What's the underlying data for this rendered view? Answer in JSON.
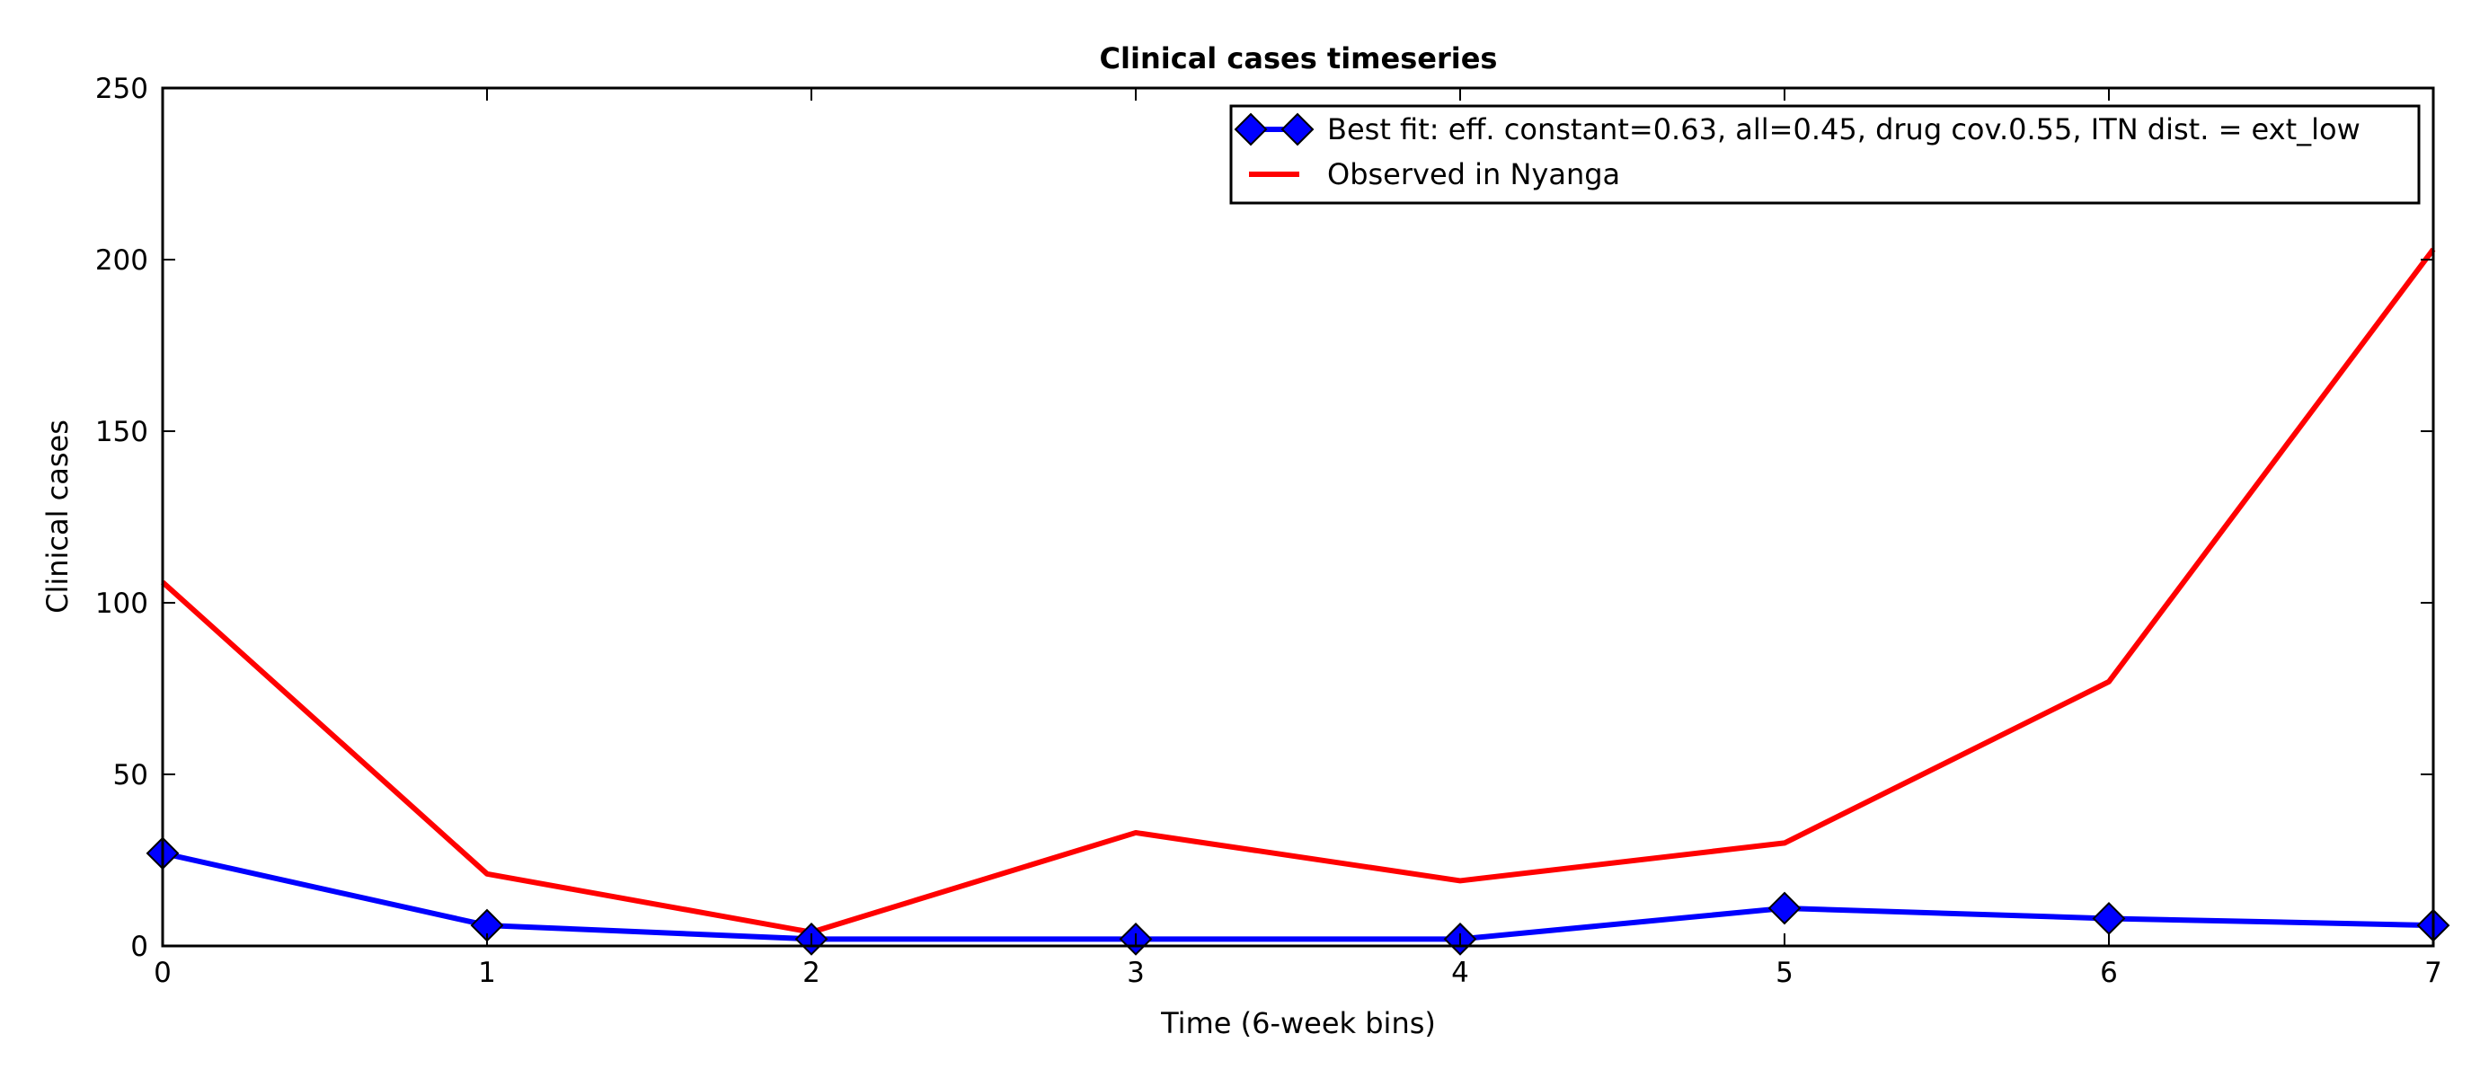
{
  "chart_data": {
    "type": "line",
    "title": "Clinical cases timeseries",
    "xlabel": "Time (6-week bins)",
    "ylabel": "Clinical cases",
    "xlim": [
      0,
      7
    ],
    "ylim": [
      0,
      250
    ],
    "x": [
      0,
      1,
      2,
      3,
      4,
      5,
      6,
      7
    ],
    "xticks": [
      "0",
      "1",
      "2",
      "3",
      "4",
      "5",
      "6",
      "7"
    ],
    "yticks": [
      "0",
      "50",
      "100",
      "150",
      "200",
      "250"
    ],
    "ytick_values": [
      0,
      50,
      100,
      150,
      200,
      250
    ],
    "grid": false,
    "legend_position": "top-right",
    "series": [
      {
        "name": "Best fit: eff. constant=0.63, all=0.45, drug cov.0.55, ITN dist. = ext_low",
        "values": [
          27,
          6,
          2,
          2,
          2,
          11,
          8,
          6
        ],
        "color": "#0000ff",
        "marker": "diamond"
      },
      {
        "name": "Observed in Nyanga",
        "values": [
          106,
          21,
          4,
          33,
          19,
          30,
          77,
          203
        ],
        "color": "#ff0000",
        "marker": "none"
      }
    ]
  }
}
